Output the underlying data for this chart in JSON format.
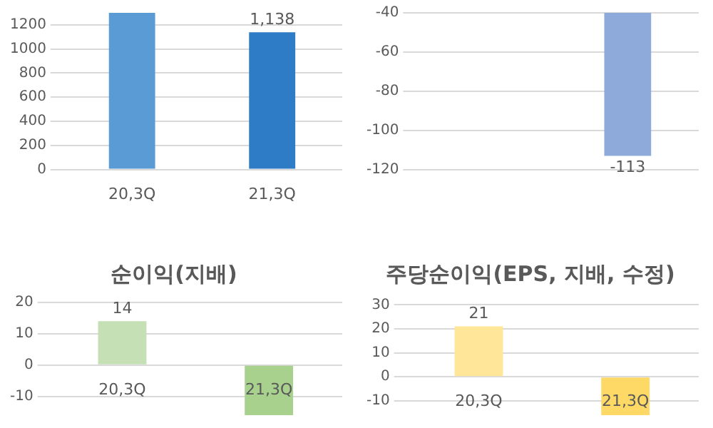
{
  "chart_data": [
    {
      "type": "bar",
      "categories": [
        "20,3Q",
        "21,3Q"
      ],
      "values": [
        1300,
        1138
      ],
      "colors": [
        "#5b9bd5",
        "#2e7bc6"
      ],
      "value_labels": [
        null,
        "1,138"
      ],
      "ylim": [
        0,
        1300
      ],
      "yticks": [
        0,
        200,
        400,
        600,
        800,
        1000,
        1200
      ],
      "grid": "y",
      "legend": false
    },
    {
      "type": "bar",
      "categories": [
        null,
        null
      ],
      "values": [
        null,
        -113
      ],
      "colors": [
        "#8eaadb",
        "#8eaadb"
      ],
      "value_labels": [
        null,
        "-113"
      ],
      "ylim": [
        -120,
        -40
      ],
      "yticks": [
        -120,
        -100,
        -80,
        -60,
        -40
      ],
      "grid": "y",
      "legend": false
    },
    {
      "type": "bar",
      "title": "순이익(지배)",
      "categories": [
        "20,3Q",
        "21,3Q"
      ],
      "values": [
        14,
        -16
      ],
      "colors": [
        "#c5e0b4",
        "#a9d18e"
      ],
      "value_labels": [
        "14",
        null
      ],
      "ylim": [
        -16,
        20
      ],
      "yticks": [
        -10,
        0,
        10,
        20
      ],
      "grid": "y",
      "legend": false
    },
    {
      "type": "bar",
      "title": "주당순이익(EPS, 지배, 수정)",
      "categories": [
        "20,3Q",
        "21,3Q"
      ],
      "values": [
        21,
        -16
      ],
      "colors": [
        "#ffe699",
        "#ffd966"
      ],
      "value_labels": [
        "21",
        null
      ],
      "ylim": [
        -16,
        31
      ],
      "yticks": [
        -10,
        0,
        10,
        20,
        30
      ],
      "grid": "y",
      "legend": false
    }
  ]
}
